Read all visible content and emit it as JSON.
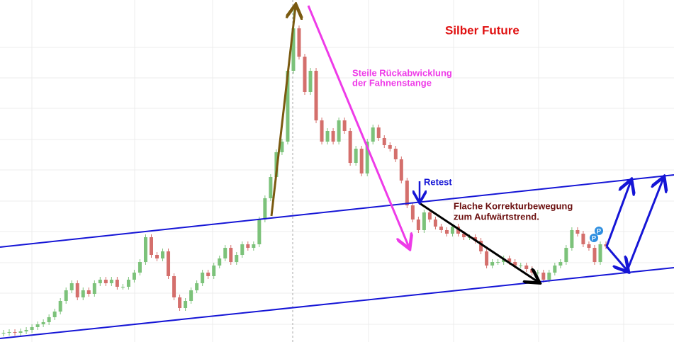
{
  "chart_data": {
    "type": "candlestick",
    "title": "Silber Future",
    "annotations": [
      "Steile Rückabwicklung",
      "der Fahnenstange",
      "Retest",
      "Flache Korrekturbewegung",
      "zum Aufwärtstrend."
    ],
    "markers": [
      "P",
      "P"
    ],
    "ylim": [
      0,
      483
    ],
    "up_color": "#7cc27a",
    "down_color": "#d46f6c",
    "open": [
      12,
      13,
      14,
      13,
      15,
      17,
      21,
      25,
      28,
      35,
      43,
      58,
      73,
      83,
      63,
      73,
      68,
      83,
      88,
      83,
      88,
      78,
      78,
      88,
      98,
      113,
      148,
      123,
      118,
      128,
      93,
      63,
      48,
      58,
      73,
      83,
      98,
      93,
      108,
      118,
      133,
      113,
      123,
      138,
      133,
      138,
      173,
      203,
      233,
      268,
      283,
      383,
      443,
      403,
      353,
      383,
      313,
      283,
      298,
      283,
      313,
      298,
      253,
      273,
      238,
      283,
      303,
      288,
      278,
      273,
      258,
      228,
      193,
      173,
      158,
      183,
      173,
      163,
      158,
      153,
      163,
      153,
      148,
      148,
      143,
      128,
      108,
      113,
      113,
      118,
      113,
      108,
      108,
      103,
      98,
      98,
      88,
      98,
      108,
      113,
      133,
      158,
      153,
      138,
      133,
      113,
      138
    ],
    "high": [
      17,
      18,
      18,
      19,
      21,
      25,
      29,
      32,
      39,
      47,
      62,
      77,
      87,
      87,
      77,
      77,
      87,
      92,
      92,
      92,
      92,
      82,
      92,
      102,
      117,
      152,
      152,
      127,
      132,
      132,
      97,
      67,
      62,
      77,
      87,
      102,
      102,
      112,
      122,
      137,
      137,
      127,
      142,
      142,
      142,
      177,
      207,
      237,
      272,
      287,
      387,
      475,
      447,
      407,
      387,
      387,
      317,
      302,
      302,
      317,
      317,
      302,
      277,
      277,
      287,
      307,
      307,
      292,
      282,
      277,
      262,
      232,
      197,
      177,
      187,
      187,
      177,
      167,
      162,
      167,
      167,
      157,
      152,
      152,
      147,
      132,
      117,
      117,
      122,
      122,
      117,
      112,
      112,
      107,
      102,
      102,
      102,
      112,
      117,
      137,
      162,
      162,
      157,
      142,
      137,
      142,
      142
    ],
    "low": [
      8,
      9,
      9,
      9,
      11,
      13,
      17,
      21,
      24,
      31,
      39,
      54,
      69,
      59,
      59,
      64,
      64,
      79,
      79,
      79,
      74,
      74,
      74,
      84,
      94,
      109,
      119,
      114,
      114,
      89,
      59,
      44,
      44,
      54,
      69,
      79,
      89,
      89,
      104,
      114,
      109,
      109,
      119,
      129,
      129,
      134,
      169,
      199,
      229,
      264,
      279,
      379,
      399,
      349,
      349,
      309,
      279,
      279,
      279,
      279,
      294,
      249,
      249,
      234,
      234,
      279,
      284,
      274,
      269,
      254,
      224,
      189,
      169,
      154,
      154,
      169,
      159,
      154,
      149,
      149,
      149,
      144,
      144,
      139,
      124,
      104,
      104,
      109,
      109,
      109,
      104,
      104,
      99,
      94,
      94,
      84,
      84,
      94,
      104,
      109,
      129,
      149,
      134,
      129,
      109,
      109,
      131
    ],
    "close": [
      13,
      14,
      13,
      15,
      17,
      21,
      25,
      28,
      35,
      43,
      58,
      73,
      83,
      63,
      73,
      68,
      83,
      88,
      83,
      88,
      78,
      78,
      88,
      98,
      113,
      148,
      123,
      118,
      128,
      93,
      63,
      48,
      58,
      73,
      83,
      98,
      93,
      108,
      118,
      133,
      113,
      123,
      138,
      133,
      138,
      173,
      203,
      233,
      268,
      283,
      383,
      443,
      403,
      353,
      383,
      313,
      283,
      298,
      283,
      313,
      298,
      253,
      273,
      238,
      283,
      303,
      288,
      278,
      273,
      258,
      228,
      193,
      173,
      158,
      183,
      173,
      163,
      158,
      153,
      163,
      153,
      148,
      148,
      143,
      128,
      108,
      113,
      113,
      118,
      113,
      108,
      108,
      103,
      98,
      98,
      88,
      98,
      108,
      113,
      133,
      158,
      153,
      138,
      133,
      113,
      138,
      135
    ]
  }
}
